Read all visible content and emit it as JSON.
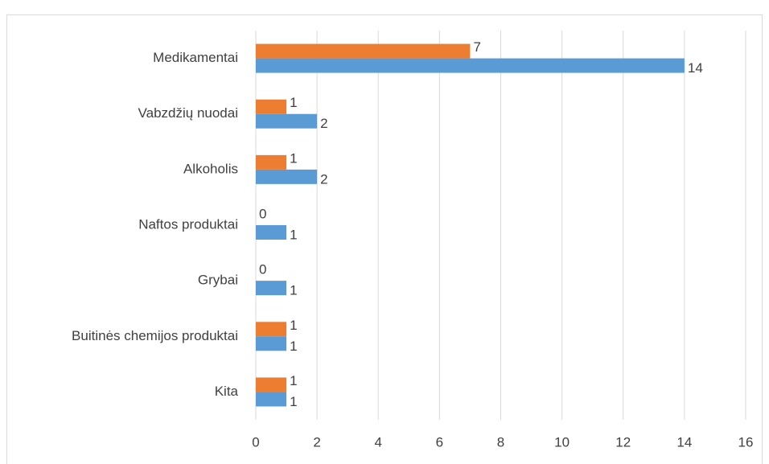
{
  "chart_data": {
    "type": "hbar",
    "categories": [
      "Medikamentai",
      "Vabzdžių nuodai",
      "Alkoholis",
      "Naftos produktai",
      "Grybai",
      "Buitinės chemijos produktai",
      "Kita"
    ],
    "series": [
      {
        "color": "#ed7d31",
        "values": [
          7,
          1,
          1,
          0,
          0,
          1,
          1
        ]
      },
      {
        "color": "#5b9bd5",
        "values": [
          14,
          2,
          2,
          1,
          1,
          1,
          1
        ]
      }
    ],
    "xlim": [
      0,
      16
    ],
    "xticks": [
      0,
      2,
      4,
      6,
      8,
      10,
      12,
      14,
      16
    ],
    "grid": true
  }
}
